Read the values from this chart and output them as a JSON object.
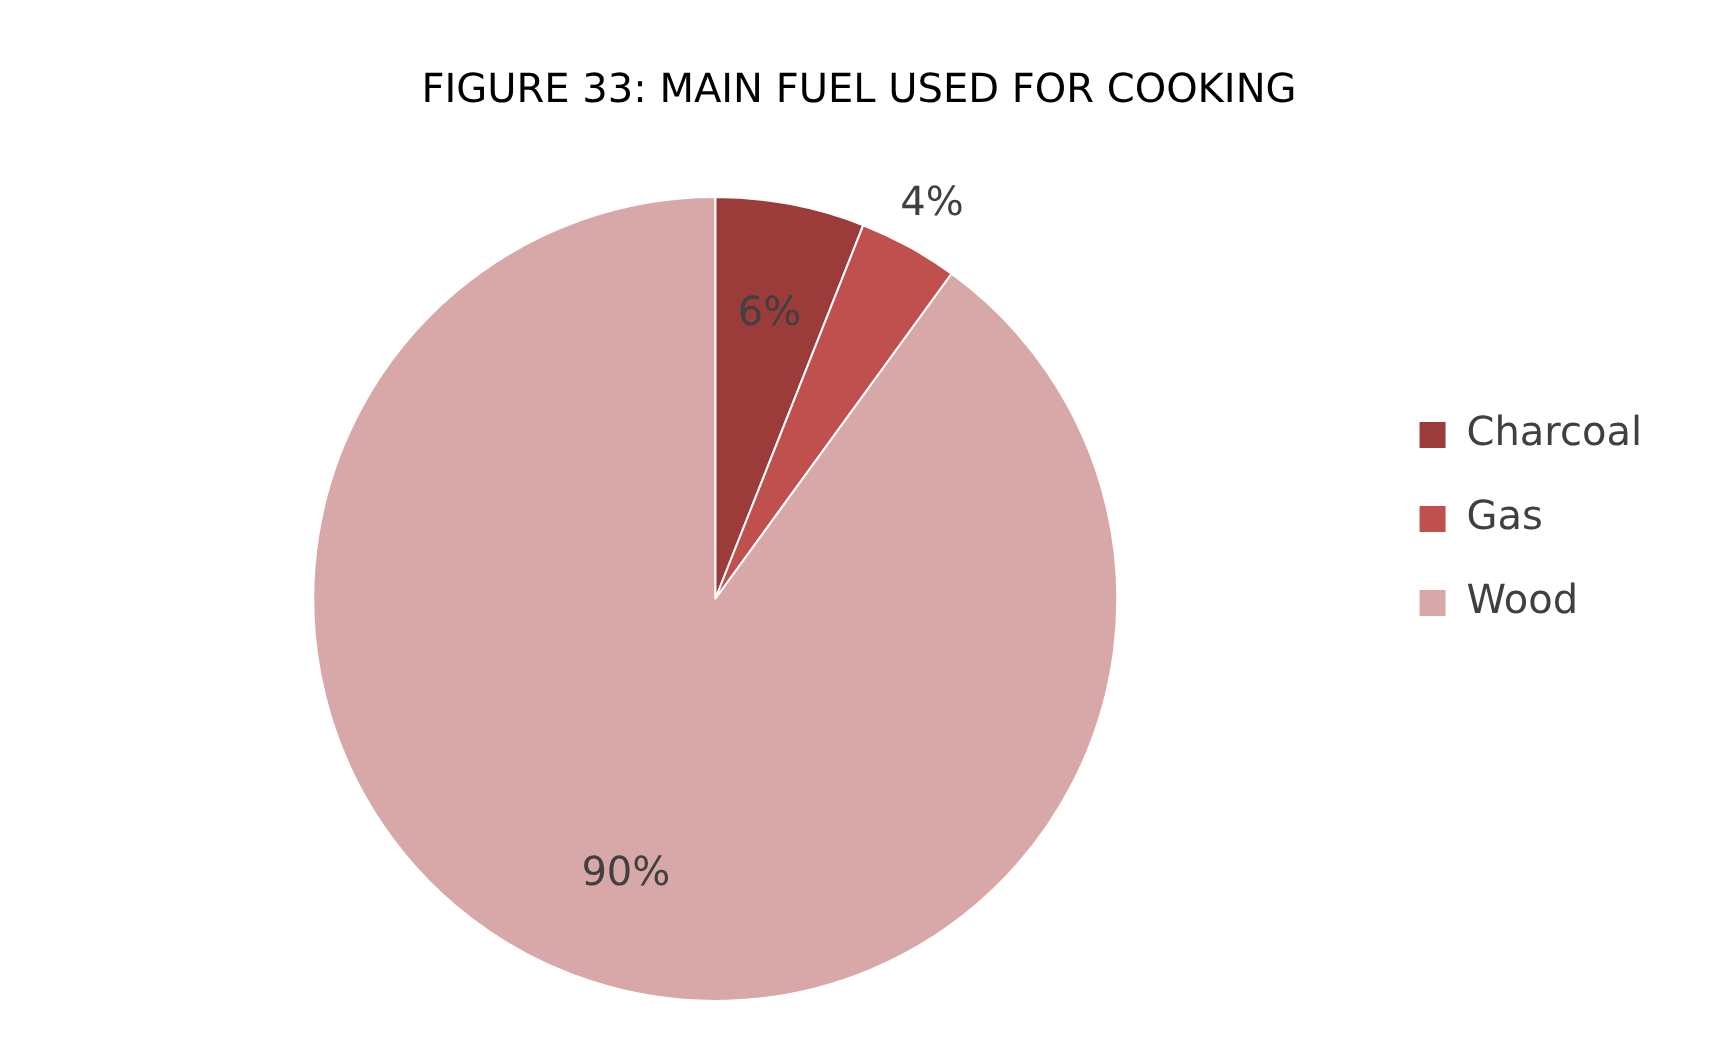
{
  "chart_data": {
    "type": "pie",
    "title": "FIGURE 33: MAIN FUEL USED FOR COOKING",
    "categories": [
      "Charcoal",
      "Gas",
      "Wood"
    ],
    "values": [
      6,
      4,
      90
    ],
    "colors": [
      "#9b3b3a",
      "#c0504d",
      "#d8a7a7"
    ],
    "value_labels": [
      "6%",
      "4%",
      "90%"
    ],
    "legend": "right"
  }
}
